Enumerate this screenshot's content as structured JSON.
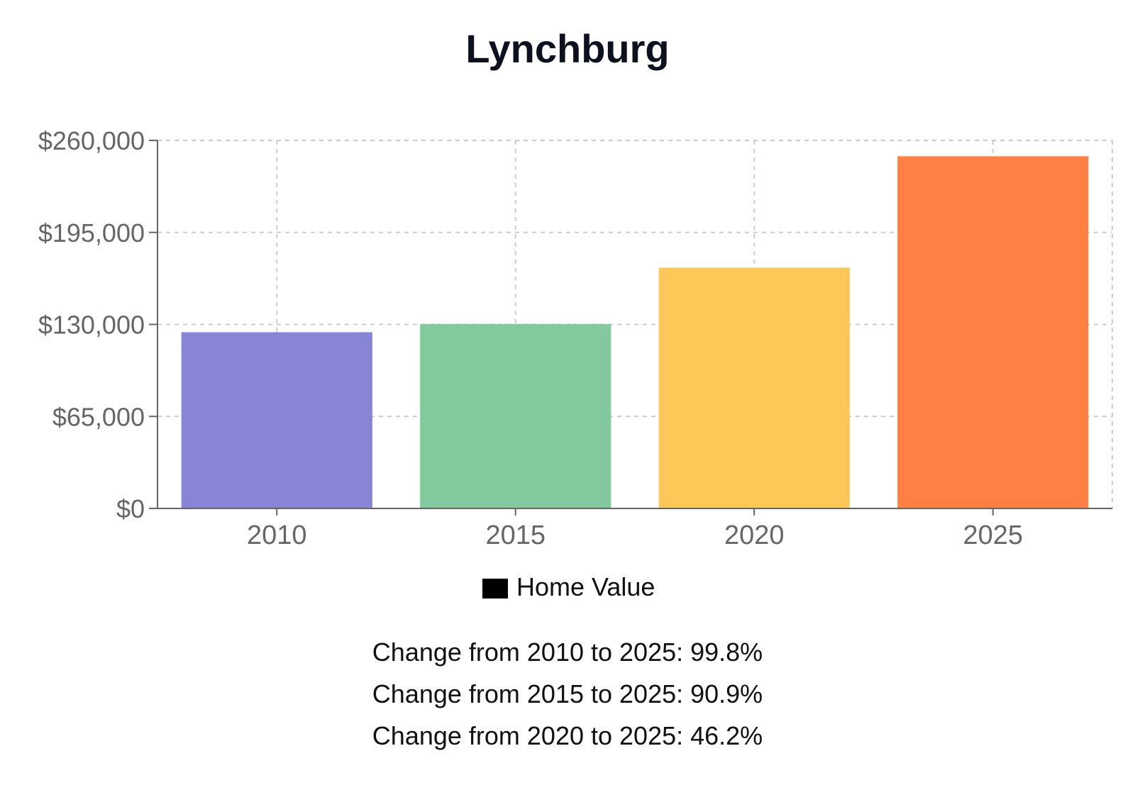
{
  "title": "Lynchburg",
  "chart_data": {
    "type": "bar",
    "title": "Lynchburg",
    "categories": [
      "2010",
      "2015",
      "2020",
      "2025"
    ],
    "series": [
      {
        "name": "Home Value",
        "values": [
          124500,
          130300,
          170100,
          248800
        ],
        "colors": [
          "#8884d8",
          "#82ca9d",
          "#ffc658",
          "#ff8042"
        ]
      }
    ],
    "ylim": [
      0,
      260000
    ],
    "yticks": [
      0,
      65000,
      130000,
      195000,
      260000
    ],
    "ytick_labels": [
      "$0",
      "$65,000",
      "$130,000",
      "$195,000",
      "$260,000"
    ],
    "grid": true,
    "legend": "bottom-center",
    "legend_swatch_color": "#000000"
  },
  "changes": [
    "Change from 2010 to 2025: 99.8%",
    "Change from 2015 to 2025: 90.9%",
    "Change from 2020 to 2025: 46.2%"
  ]
}
